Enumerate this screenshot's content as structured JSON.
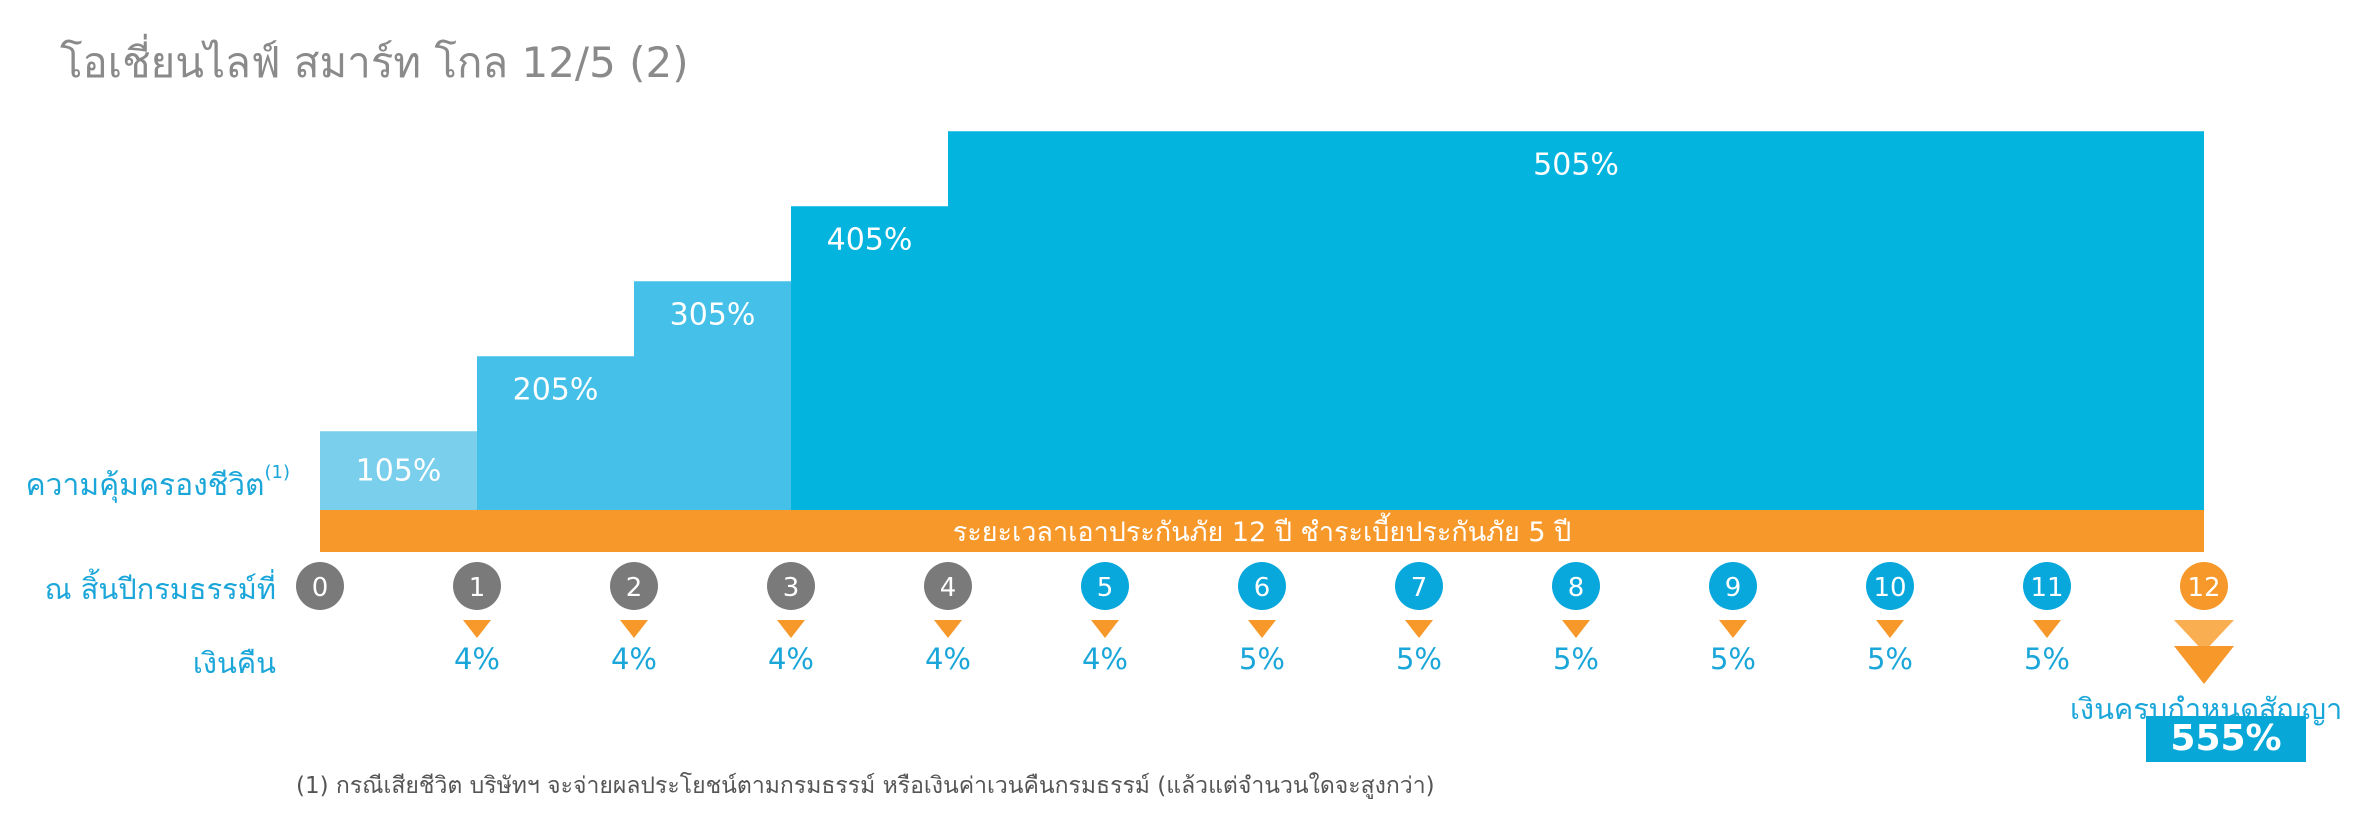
{
  "title": "โอเชี่ยนไลฟ์ สมาร์ท โกล 12/5 (2)",
  "labels": {
    "coverage": "ความคุ้มครองชีวิต",
    "coverage_note": "(1)",
    "policy_year": "ณ สิ้นปีกรมธรรม์ที่",
    "refund": "เงินคืน",
    "maturity": "เงินครบกำหนดสัญญา",
    "maturity_value": "555%"
  },
  "footnote": "(1) กรณีเสียชีวิต บริษัทฯ จะจ่ายผลประโยชน์ตามกรมธรรม์ หรือเงินค่าเวนคืนกรมธรรม์ (แล้วแต่จำนวนใดจะสูงกว่า)",
  "colors": {
    "bar_light": "#79cfec",
    "bar_mid": "#45c0e8",
    "bar_main": "#03b4df",
    "term_bar": "#f7982a",
    "circle_grey": "#7a7a7a",
    "circle_blue": "#08a7dc",
    "circle_orange": "#f7982a",
    "text_blue": "#1aa6d9"
  },
  "chart_data": {
    "type": "bar",
    "coverage": {
      "segments": [
        {
          "start_year": 0,
          "end_year": 1,
          "value": 105,
          "label": "105%"
        },
        {
          "start_year": 1,
          "end_year": 2,
          "value": 205,
          "label": "205%"
        },
        {
          "start_year": 2,
          "end_year": 3,
          "value": 305,
          "label": "305%"
        },
        {
          "start_year": 3,
          "end_year": 4,
          "value": 405,
          "label": "405%"
        },
        {
          "start_year": 4,
          "end_year": 12,
          "value": 505,
          "label": "505%"
        }
      ]
    },
    "term_bar_label": "ระยะเวลาเอาประกันภัย 12 ปี  ชำระเบี้ยประกันภัย 5 ปี",
    "years": [
      "0",
      "1",
      "2",
      "3",
      "4",
      "5",
      "6",
      "7",
      "8",
      "9",
      "10",
      "11",
      "12"
    ],
    "refunds": [
      {
        "year": 1,
        "label": "4%"
      },
      {
        "year": 2,
        "label": "4%"
      },
      {
        "year": 3,
        "label": "4%"
      },
      {
        "year": 4,
        "label": "4%"
      },
      {
        "year": 5,
        "label": "4%"
      },
      {
        "year": 6,
        "label": "5%"
      },
      {
        "year": 7,
        "label": "5%"
      },
      {
        "year": 8,
        "label": "5%"
      },
      {
        "year": 9,
        "label": "5%"
      },
      {
        "year": 10,
        "label": "5%"
      },
      {
        "year": 11,
        "label": "5%"
      }
    ]
  }
}
